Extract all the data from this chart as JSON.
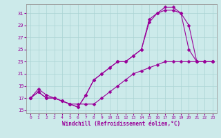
{
  "xlabel": "Windchill (Refroidissement éolien,°C)",
  "xlim": [
    -0.5,
    23.5
  ],
  "ylim": [
    14.5,
    32.5
  ],
  "xticks": [
    0,
    1,
    2,
    3,
    4,
    5,
    6,
    7,
    8,
    9,
    10,
    11,
    12,
    13,
    14,
    15,
    16,
    17,
    18,
    19,
    20,
    21,
    22,
    23
  ],
  "yticks": [
    15,
    17,
    19,
    21,
    23,
    25,
    27,
    29,
    31
  ],
  "background_color": "#cceaea",
  "grid_color": "#aad4d4",
  "line_color": "#990099",
  "line1_x": [
    0,
    1,
    2,
    3,
    4,
    5,
    6,
    7,
    8,
    9,
    10,
    11,
    12,
    13,
    14,
    15,
    16,
    17,
    18,
    19,
    20,
    21,
    22,
    23
  ],
  "line1_y": [
    17,
    18,
    17,
    17,
    16.5,
    16,
    15.5,
    17.5,
    20,
    21,
    22,
    23,
    23,
    24,
    25,
    30,
    31,
    32,
    32,
    31,
    25,
    23,
    23,
    23
  ],
  "line2_x": [
    0,
    1,
    2,
    3,
    4,
    5,
    6,
    7,
    8,
    9,
    10,
    11,
    12,
    13,
    14,
    15,
    16,
    17,
    18,
    19,
    20,
    21,
    22,
    23
  ],
  "line2_y": [
    17,
    18,
    17,
    17,
    16.5,
    16,
    15.5,
    17.5,
    20,
    21,
    22,
    23,
    23,
    24,
    25,
    29.5,
    31,
    31.5,
    31.5,
    31,
    29,
    23,
    23,
    23
  ],
  "line3_x": [
    0,
    1,
    2,
    3,
    4,
    5,
    6,
    7,
    8,
    9,
    10,
    11,
    12,
    13,
    14,
    15,
    16,
    17,
    18,
    19,
    20,
    21,
    22,
    23
  ],
  "line3_y": [
    17,
    18.5,
    17.5,
    17,
    16.5,
    16,
    16,
    16,
    16,
    17,
    18,
    19,
    20,
    21,
    21.5,
    22,
    22.5,
    23,
    23,
    23,
    23,
    23,
    23,
    23
  ]
}
